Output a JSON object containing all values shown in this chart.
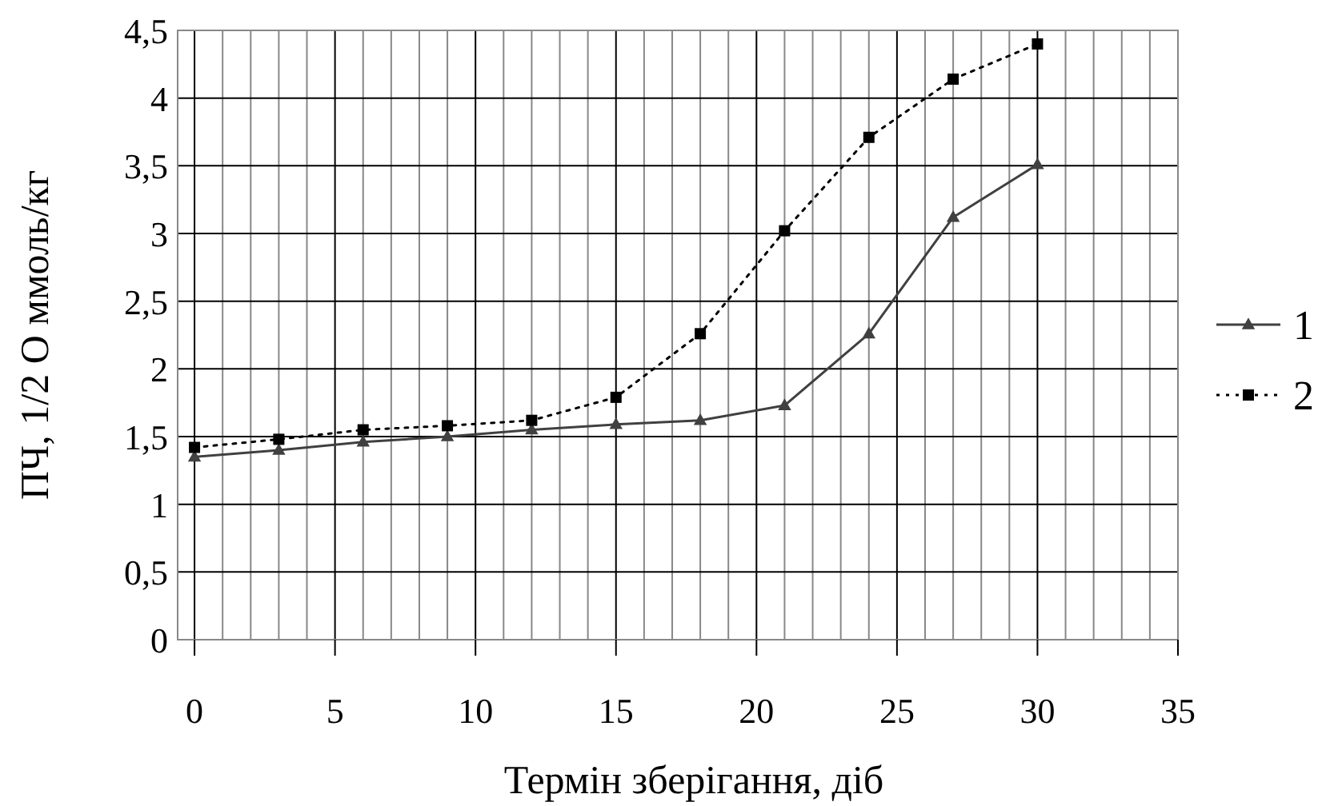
{
  "chart_data": {
    "type": "line",
    "xlabel": "Термін зберігання, діб",
    "ylabel": "ПЧ, 1/2 О ммоль/кг",
    "x": [
      0,
      3,
      6,
      9,
      12,
      15,
      18,
      21,
      24,
      27,
      30
    ],
    "series": [
      {
        "name": "1",
        "color": "#404040",
        "marker": "triangle",
        "line_style": "solid",
        "values": [
          1.35,
          1.4,
          1.46,
          1.5,
          1.55,
          1.59,
          1.62,
          1.73,
          2.26,
          3.12,
          3.51
        ]
      },
      {
        "name": "2",
        "color": "#000000",
        "marker": "square",
        "line_style": "dotted",
        "values": [
          1.42,
          1.48,
          1.55,
          1.58,
          1.62,
          1.79,
          2.26,
          3.02,
          3.71,
          4.14,
          4.4
        ]
      }
    ],
    "xlim": [
      -0.6,
      35
    ],
    "ylim": [
      0,
      4.5
    ],
    "xticks": [
      0,
      {
        "value": 1,
        "label": null
      },
      {
        "value": 2,
        "label": null
      },
      {
        "value": 3,
        "label": null
      },
      {
        "value": 4,
        "label": null
      },
      5,
      {
        "value": 6,
        "label": null
      },
      {
        "value": 7,
        "label": null
      },
      {
        "value": 8,
        "label": null
      },
      {
        "value": 9,
        "label": null
      },
      10,
      {
        "value": 11,
        "label": null
      },
      {
        "value": 12,
        "label": null
      },
      {
        "value": 13,
        "label": null
      },
      {
        "value": 14,
        "label": null
      },
      15,
      {
        "value": 16,
        "label": null
      },
      {
        "value": 17,
        "label": null
      },
      {
        "value": 18,
        "label": null
      },
      {
        "value": 19,
        "label": null
      },
      20,
      {
        "value": 21,
        "label": null
      },
      {
        "value": 22,
        "label": null
      },
      {
        "value": 23,
        "label": null
      },
      {
        "value": 24,
        "label": null
      },
      25,
      {
        "value": 26,
        "label": null
      },
      {
        "value": 27,
        "label": null
      },
      {
        "value": 28,
        "label": null
      },
      {
        "value": 29,
        "label": null
      },
      30,
      {
        "value": 31,
        "label": null
      },
      {
        "value": 32,
        "label": null
      },
      {
        "value": 33,
        "label": null
      },
      {
        "value": 34,
        "label": null
      },
      35
    ],
    "yticks": [
      0,
      {
        "value": 0.5,
        "label": "0,5"
      },
      1,
      {
        "value": 1.5,
        "label": "1,5"
      },
      2,
      {
        "value": 2.5,
        "label": "2,5"
      },
      3,
      {
        "value": 3.5,
        "label": "3,5"
      },
      4,
      {
        "value": 4.5,
        "label": "4,5"
      }
    ],
    "grid": true,
    "legend": "right"
  }
}
